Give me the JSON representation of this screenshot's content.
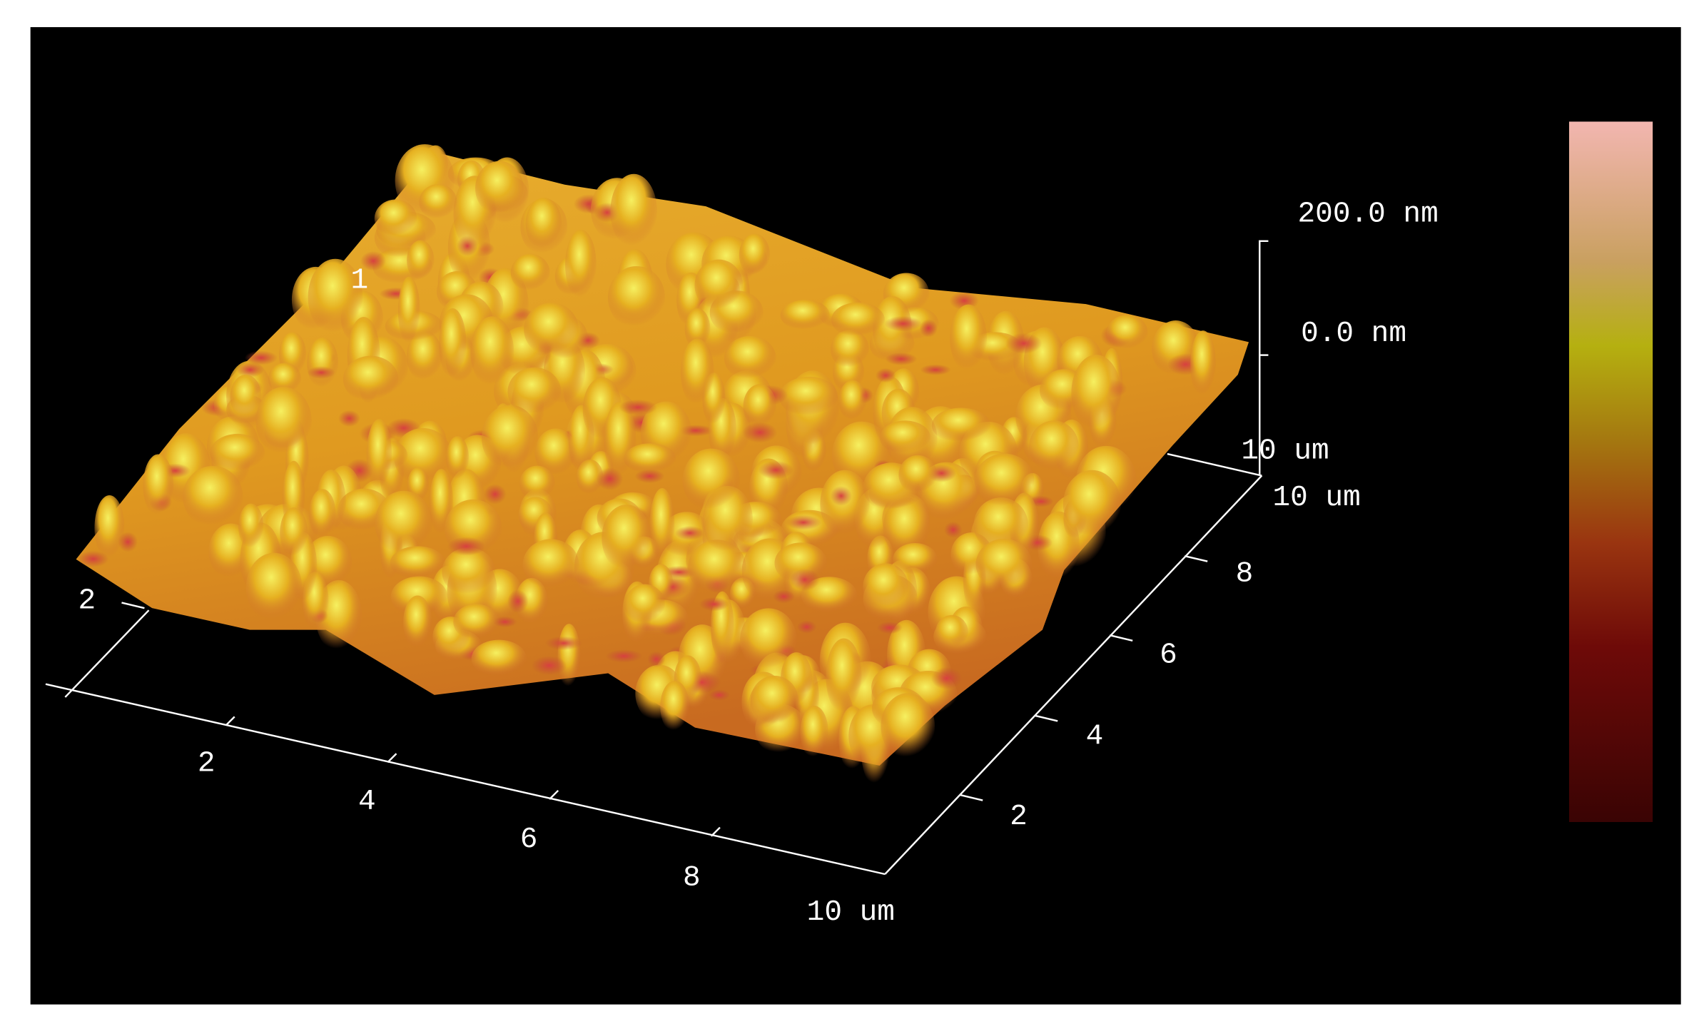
{
  "z_axis": {
    "max_label": "200.0 nm",
    "min_label": "0.0 nm"
  },
  "x_axis": {
    "ticks": [
      "2",
      "4",
      "6",
      "8"
    ],
    "end_label": "10 um"
  },
  "y_axis": {
    "ticks": [
      "2",
      "4",
      "6",
      "8"
    ],
    "end_label": "10 um"
  },
  "back_axis": {
    "end_label": "10 um"
  },
  "left_axis": {
    "tick": "2",
    "hidden_tick": "1"
  }
}
